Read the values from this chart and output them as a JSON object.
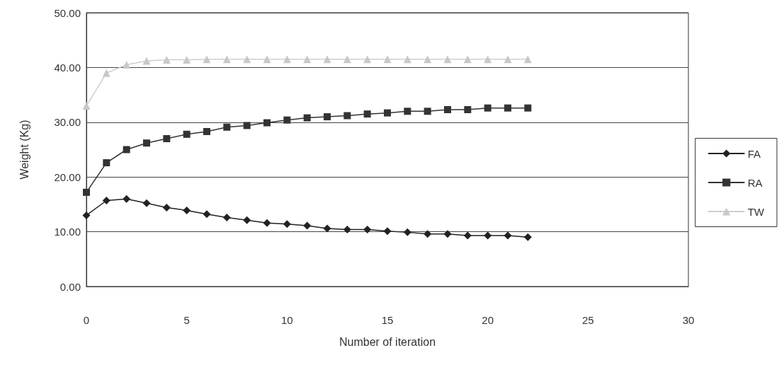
{
  "chart_data": {
    "type": "line",
    "xlabel": "Number of iteration",
    "ylabel": "Weight (Kg)",
    "x": [
      0,
      1,
      2,
      3,
      4,
      5,
      6,
      7,
      8,
      9,
      10,
      11,
      12,
      13,
      14,
      15,
      16,
      17,
      18,
      19,
      20,
      21,
      22
    ],
    "series": [
      {
        "name": "FA",
        "color": "#222222",
        "marker": "diamond",
        "line_style": "solid",
        "values": [
          13.0,
          15.7,
          16.0,
          15.2,
          14.4,
          13.9,
          13.2,
          12.6,
          12.1,
          11.6,
          11.4,
          11.1,
          10.6,
          10.4,
          10.4,
          10.1,
          9.9,
          9.6,
          9.6,
          9.3,
          9.3,
          9.3,
          9.0
        ]
      },
      {
        "name": "RA",
        "color": "#333333",
        "marker": "square",
        "line_style": "solid",
        "values": [
          17.2,
          22.6,
          25.0,
          26.2,
          27.0,
          27.8,
          28.3,
          29.1,
          29.4,
          29.9,
          30.4,
          30.8,
          31.0,
          31.2,
          31.5,
          31.7,
          32.0,
          32.0,
          32.3,
          32.3,
          32.6,
          32.6,
          32.6
        ]
      },
      {
        "name": "TW",
        "color": "#c8c8c8",
        "marker": "triangle",
        "line_style": "dotted",
        "values": [
          33.0,
          39.0,
          40.5,
          41.2,
          41.4,
          41.4,
          41.5,
          41.5,
          41.5,
          41.5,
          41.5,
          41.5,
          41.5,
          41.5,
          41.5,
          41.5,
          41.5,
          41.5,
          41.5,
          41.5,
          41.5,
          41.5,
          41.5
        ]
      }
    ],
    "xlim": [
      0,
      30
    ],
    "xticks": [
      0,
      5,
      10,
      15,
      20,
      25,
      30
    ],
    "ylim": [
      0,
      50
    ],
    "yticks": [
      {
        "value": 0,
        "label": "0.00"
      },
      {
        "value": 10,
        "label": "10.00"
      },
      {
        "value": 20,
        "label": "20.00"
      },
      {
        "value": 30,
        "label": "30.00"
      },
      {
        "value": 40,
        "label": "40.00"
      },
      {
        "value": 50,
        "label": "50.00"
      }
    ],
    "grid": "y",
    "legend": "right"
  }
}
